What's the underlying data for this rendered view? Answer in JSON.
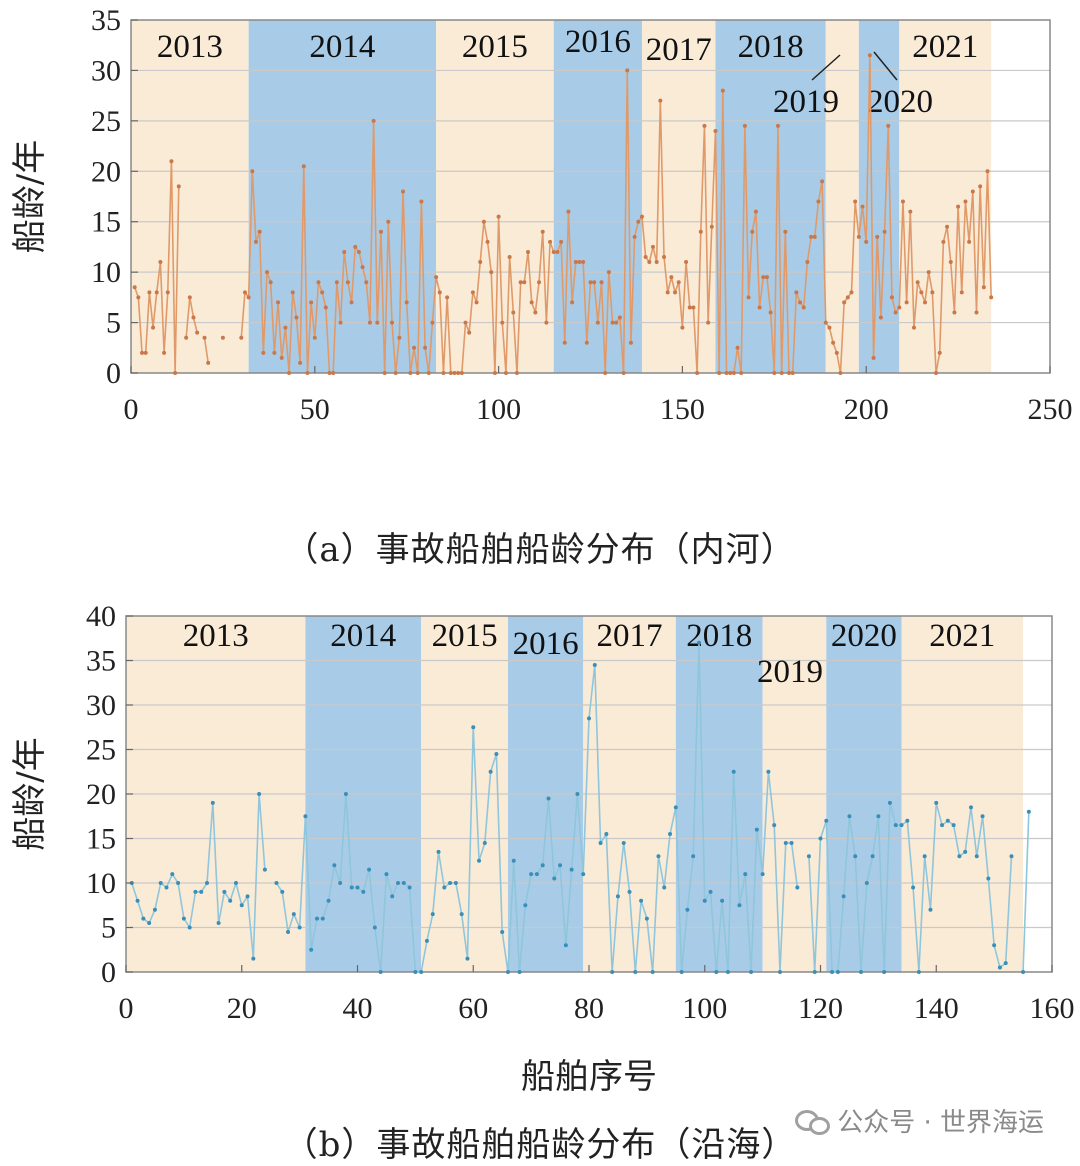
{
  "watermark": {
    "text": "公众号 · 世界海运",
    "icon": "wechat-icon"
  },
  "chart_data": [
    {
      "type": "line",
      "id": "a",
      "caption": "（a）事故船舶船龄分布（内河）",
      "xlabel": "船舶序号",
      "ylabel": "船龄/年",
      "xlim": [
        0,
        250
      ],
      "ylim": [
        0,
        35
      ],
      "xticks": [
        0,
        50,
        100,
        150,
        200,
        250
      ],
      "yticks": [
        0,
        5,
        10,
        15,
        20,
        25,
        30,
        35
      ],
      "grid": "horizontal",
      "line_color": "#e09a6a",
      "marker_color": "#c8784a",
      "band_colors": {
        "light": "#faebd7",
        "dark": "#a8cce8"
      },
      "year_bands": [
        {
          "year": "2013",
          "start": 0,
          "end": 32,
          "shade": "light"
        },
        {
          "year": "2014",
          "start": 32,
          "end": 83,
          "shade": "dark"
        },
        {
          "year": "2015",
          "start": 83,
          "end": 115,
          "shade": "light"
        },
        {
          "year": "2016",
          "start": 115,
          "end": 139,
          "shade": "dark"
        },
        {
          "year": "2017",
          "start": 139,
          "end": 159,
          "shade": "light"
        },
        {
          "year": "2018",
          "start": 159,
          "end": 189,
          "shade": "dark"
        },
        {
          "year": "2019",
          "start": 189,
          "end": 198,
          "shade": "light"
        },
        {
          "year": "2020",
          "start": 198,
          "end": 209,
          "shade": "dark"
        },
        {
          "year": "2021",
          "start": 209,
          "end": 234,
          "shade": "light"
        }
      ],
      "values": [
        8.5,
        7.5,
        2,
        2,
        8,
        4.5,
        8,
        11,
        2,
        8,
        21,
        0,
        18.5,
        null,
        3.5,
        7.5,
        5.5,
        4,
        null,
        3.5,
        1,
        null,
        null,
        null,
        3.5,
        null,
        null,
        null,
        null,
        3.5,
        8,
        7.5,
        20,
        13,
        14,
        2,
        10,
        9,
        2,
        7,
        1.5,
        4.5,
        0,
        8,
        5.5,
        1,
        20.5,
        0,
        7,
        3.5,
        9,
        8,
        6.5,
        0,
        0,
        9,
        5,
        12,
        9,
        7,
        12.5,
        12,
        10.5,
        9,
        5,
        25,
        5,
        14,
        0,
        15,
        5,
        0,
        3.5,
        18,
        7,
        0,
        2.5,
        0,
        17,
        2.5,
        0,
        5,
        9.5,
        8,
        0,
        7.5,
        0,
        0,
        0,
        0,
        5,
        4,
        8,
        7,
        11,
        15,
        13,
        10,
        0,
        15.5,
        5,
        0,
        11.5,
        6,
        0,
        9,
        9,
        12,
        7,
        6,
        9,
        14,
        5,
        13,
        12,
        12,
        13,
        3,
        16,
        7,
        11,
        11,
        11,
        3,
        9,
        9,
        5,
        9,
        0,
        10,
        5,
        5,
        5.5,
        0,
        30,
        3,
        13.5,
        15,
        15.5,
        11.5,
        11,
        12.5,
        11,
        27,
        11.5,
        8,
        9.5,
        8,
        9,
        4.5,
        11,
        6.5,
        6.5,
        0,
        14,
        24.5,
        5,
        14.5,
        24,
        0,
        28,
        0,
        0,
        0,
        2.5,
        0,
        24.5,
        7.5,
        14,
        16,
        6.5,
        9.5,
        9.5,
        6,
        0,
        24.5,
        0,
        14,
        0,
        0,
        8,
        7,
        6.5,
        11,
        13.5,
        13.5,
        17,
        19,
        5,
        4.5,
        3,
        2,
        0,
        7,
        7.5,
        8,
        17,
        13.5,
        16.5,
        13,
        31.5,
        1.5,
        13.5,
        5.5,
        14,
        24.5,
        7.5,
        6,
        6.5,
        17,
        7,
        16,
        4.5,
        9,
        8,
        7,
        10,
        8,
        0,
        2,
        13,
        14.5,
        11,
        6,
        16.5,
        8,
        17,
        13,
        18,
        6,
        18.5,
        8.5,
        20,
        7.5
      ]
    },
    {
      "type": "line",
      "id": "b",
      "caption": "（b）事故船舶船龄分布（沿海）",
      "xlabel": "船舶序号",
      "ylabel": "船龄/年",
      "xlim": [
        0,
        160
      ],
      "ylim": [
        0,
        40
      ],
      "xticks": [
        0,
        20,
        40,
        60,
        80,
        100,
        120,
        140,
        160
      ],
      "yticks": [
        0,
        5,
        10,
        15,
        20,
        25,
        30,
        35,
        40
      ],
      "grid": "horizontal",
      "line_color": "#8fc6dc",
      "marker_color": "#3a8fb8",
      "band_colors": {
        "light": "#faebd7",
        "dark": "#a8cce8"
      },
      "year_bands": [
        {
          "year": "2013",
          "start": 0,
          "end": 31,
          "shade": "light"
        },
        {
          "year": "2014",
          "start": 31,
          "end": 51,
          "shade": "dark"
        },
        {
          "year": "2015",
          "start": 51,
          "end": 66,
          "shade": "light"
        },
        {
          "year": "2016",
          "start": 66,
          "end": 79,
          "shade": "dark"
        },
        {
          "year": "2017",
          "start": 79,
          "end": 95,
          "shade": "light"
        },
        {
          "year": "2018",
          "start": 95,
          "end": 110,
          "shade": "dark"
        },
        {
          "year": "2019",
          "start": 110,
          "end": 121,
          "shade": "light"
        },
        {
          "year": "2020",
          "start": 121,
          "end": 134,
          "shade": "dark"
        },
        {
          "year": "2021",
          "start": 134,
          "end": 155,
          "shade": "light"
        }
      ],
      "values": [
        10,
        8,
        6,
        5.5,
        7,
        10,
        9.5,
        11,
        10,
        6,
        5,
        9,
        9,
        10,
        19,
        5.5,
        9,
        8,
        10,
        7.5,
        8.5,
        1.5,
        20,
        11.5,
        null,
        10,
        9,
        4.5,
        6.5,
        5,
        17.5,
        2.5,
        6,
        6,
        8,
        12,
        10,
        20,
        9.5,
        9.5,
        9,
        11.5,
        5,
        0,
        11,
        8.5,
        10,
        10,
        9.5,
        0,
        0,
        3.5,
        6.5,
        13.5,
        9.5,
        10,
        10,
        6.5,
        1.5,
        27.5,
        12.5,
        14.5,
        22.5,
        24.5,
        4.5,
        0,
        12.5,
        0,
        7.5,
        11,
        11,
        12,
        19.5,
        10.5,
        12,
        3,
        11.5,
        20,
        11,
        28.5,
        34.5,
        14.5,
        15.5,
        0,
        8.5,
        14.5,
        9,
        0,
        8,
        6,
        0,
        13,
        9.5,
        15.5,
        18.5,
        0,
        7,
        13,
        37,
        8,
        9,
        0,
        8,
        0,
        22.5,
        7.5,
        11,
        0,
        16,
        11,
        22.5,
        16.5,
        0,
        14.5,
        14.5,
        9.5,
        null,
        13,
        0,
        15,
        17,
        0,
        0,
        8.5,
        17.5,
        13,
        0,
        10,
        13,
        17.5,
        0,
        19,
        16.5,
        16.5,
        17,
        9.5,
        0,
        13,
        7,
        19,
        16.5,
        17,
        16.5,
        13,
        13.5,
        18.5,
        13,
        17.5,
        10.5,
        3,
        0.5,
        1,
        13,
        null,
        0,
        18
      ]
    }
  ]
}
